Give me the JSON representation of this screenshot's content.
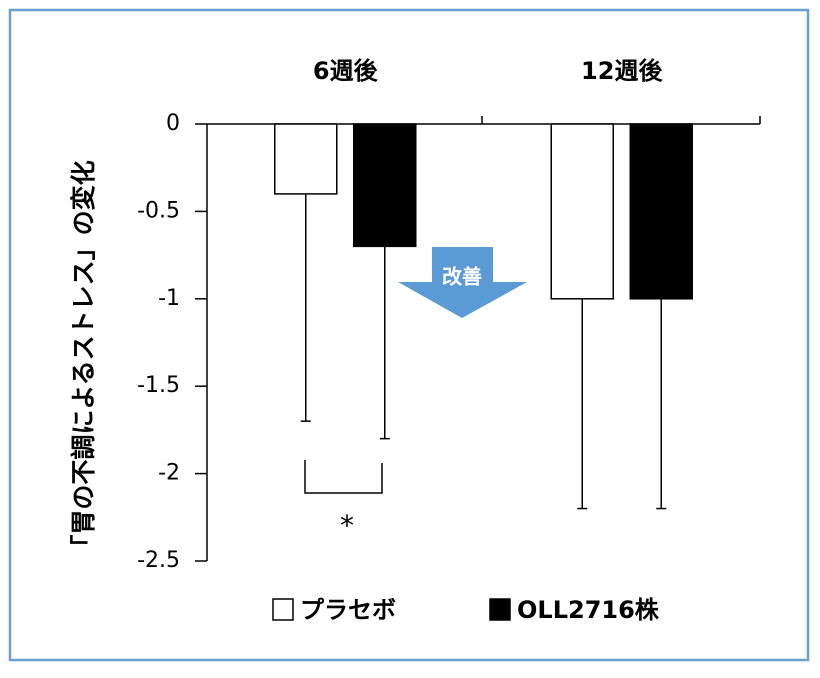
{
  "chart_data": {
    "type": "bar",
    "categories": [
      "6週後",
      "12週後"
    ],
    "series": [
      {
        "name": "プラセボ",
        "color": "#ffffff",
        "values": [
          -0.4,
          -1
        ],
        "errors": [
          1.3,
          1.2
        ]
      },
      {
        "name": "OLL2716株",
        "color": "#000000",
        "values": [
          -0.7,
          -1
        ],
        "errors": [
          1.1,
          1.2
        ]
      }
    ],
    "ylim": [
      -2.5,
      0
    ],
    "yticks": [
      0,
      -0.5,
      -1,
      -1.5,
      -2,
      -2.5
    ],
    "ylabel": "「胃の不調によるストレス」の変化",
    "annotations": {
      "arrow": "改善",
      "significance": "*"
    }
  }
}
